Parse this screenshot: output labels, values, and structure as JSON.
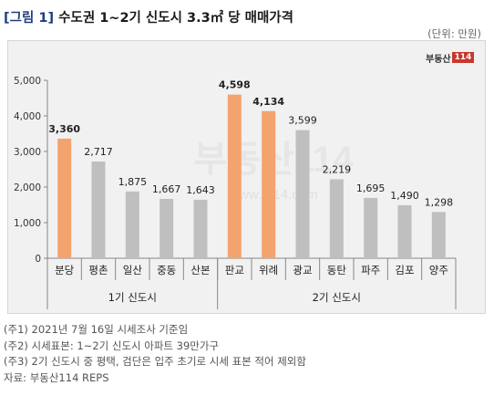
{
  "title": {
    "tag": "[그림 1]",
    "text": "수도권 1~2기 신도시 3.3㎡ 당 매매가격"
  },
  "unit_label": "(단위: 만원)",
  "logo": {
    "text": "부동산",
    "box": "114"
  },
  "watermark": {
    "text": "부동산114",
    "url": "www.r114.com"
  },
  "chart_data": {
    "type": "bar",
    "ylim": [
      0,
      5000
    ],
    "yticks": [
      "0",
      "1,000",
      "2,000",
      "3,000",
      "4,000",
      "5,000"
    ],
    "categories": [
      "분당",
      "평촌",
      "일산",
      "중동",
      "산본",
      "판교",
      "위례",
      "광교",
      "동탄",
      "파주",
      "김포",
      "양주"
    ],
    "values": [
      3360,
      2717,
      1875,
      1667,
      1643,
      4598,
      4134,
      3599,
      2219,
      1695,
      1490,
      1298
    ],
    "value_labels": [
      "3,360",
      "2,717",
      "1,875",
      "1,667",
      "1,643",
      "4,598",
      "4,134",
      "3,599",
      "2,219",
      "1,695",
      "1,490",
      "1,298"
    ],
    "highlight": [
      true,
      false,
      false,
      false,
      false,
      true,
      true,
      false,
      false,
      false,
      false,
      false
    ],
    "groups": [
      {
        "label": "1기 신도시",
        "count": 5
      },
      {
        "label": "2기 신도시",
        "count": 7
      }
    ],
    "colors": {
      "highlight": "#f4a36e",
      "normal": "#bfbfbf"
    }
  },
  "notes": [
    "(주1) 2021년 7월 16일 시세조사 기준임",
    "(주2) 시세표본: 1~2기 신도시 아파트 39만가구",
    "(주3) 2기 신도시 중 평택, 검단은 입주 초기로 시세 표본 적어 제외함",
    "자료: 부동산114 REPS"
  ]
}
